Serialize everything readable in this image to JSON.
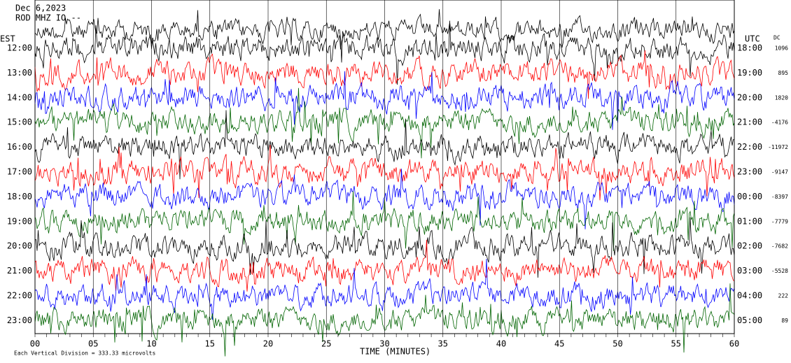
{
  "chart_data": {
    "type": "helicorder",
    "header": [
      "Dec 6,2023",
      "ROD MHZ IO --"
    ],
    "left_axis_title": "EST",
    "right_axis_title": "UTC",
    "dc_title": "DC",
    "left_labels": [
      "12:00",
      "13:00",
      "14:00",
      "15:00",
      "16:00",
      "17:00",
      "18:00",
      "19:00",
      "20:00",
      "21:00",
      "22:00",
      "23:00"
    ],
    "right_labels": [
      "18:00",
      "19:00",
      "20:00",
      "21:00",
      "22:00",
      "23:00",
      "00:00",
      "01:00",
      "02:00",
      "03:00",
      "04:00",
      "05:00"
    ],
    "dc_values": [
      1096,
      895,
      1820,
      -4176,
      -11972,
      -9147,
      -8397,
      -7779,
      -7682,
      -5528,
      222,
      89
    ],
    "trace_colors": [
      "#000000",
      "#ff0000",
      "#0000ff",
      "#006400"
    ],
    "xlabel": "TIME (MINUTES)",
    "xlim": [
      0,
      60
    ],
    "xticks": [
      {
        "value": 0,
        "label": "00"
      },
      {
        "value": 5,
        "label": "05"
      },
      10,
      15,
      20,
      25,
      30,
      35,
      40,
      45,
      50,
      55,
      60
    ],
    "footer": "Each Vertical Division =  333.33 microvolts"
  }
}
